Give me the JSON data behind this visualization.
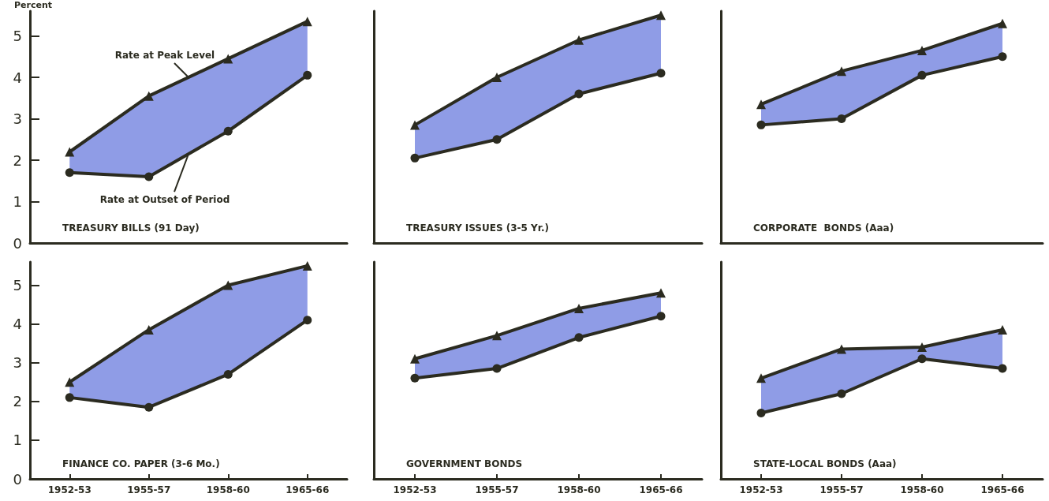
{
  "chart_data": [
    {
      "type": "line",
      "title": "TREASURY BILLS (91 Day)",
      "ylabel": "Percent",
      "categories": [
        "1952-53",
        "1955-57",
        "1958-60",
        "1965-66"
      ],
      "ylim": [
        0,
        5.6
      ],
      "yticks": [
        0,
        1,
        2,
        3,
        4,
        5
      ],
      "tick_labels": "y",
      "grid": false,
      "legend": false,
      "series": [
        {
          "name": "Rate at Peak Level",
          "color": "#2b2b20",
          "marker": "triangle",
          "values": [
            2.2,
            3.55,
            4.45,
            5.35
          ],
          "lower": [
            1.7,
            1.6,
            2.7,
            4.05
          ],
          "upper": [
            2.2,
            3.55,
            4.45,
            5.35
          ]
        },
        {
          "name": "Rate at Outset of Period",
          "color": "#2b2b20",
          "marker": "circle",
          "values": [
            1.7,
            1.6,
            2.7,
            4.05
          ]
        }
      ]
    },
    {
      "type": "line",
      "title": "TREASURY ISSUES (3-5 Yr.)",
      "categories": [
        "1952-53",
        "1955-57",
        "1958-60",
        "1965-66"
      ],
      "ylim": [
        0,
        5.6
      ],
      "yticks": [
        0,
        1,
        2,
        3,
        4,
        5
      ],
      "tick_labels": false,
      "grid": false,
      "legend": false,
      "series": [
        {
          "color": "#2b2b20",
          "marker": "triangle",
          "values": [
            2.85,
            4.0,
            4.9,
            5.5
          ],
          "lower": [
            2.05,
            2.5,
            3.6,
            4.1
          ],
          "upper": [
            2.85,
            4.0,
            4.9,
            5.5
          ]
        },
        {
          "color": "#2b2b20",
          "marker": "circle",
          "values": [
            2.05,
            2.5,
            3.6,
            4.1
          ]
        }
      ]
    },
    {
      "type": "line",
      "title": "CORPORATE  BONDS (Aaa)",
      "categories": [
        "1952-53",
        "1955-57",
        "1958-60",
        "1965-66"
      ],
      "ylim": [
        0,
        5.6
      ],
      "yticks": [
        0,
        1,
        2,
        3,
        4,
        5
      ],
      "tick_labels": false,
      "grid": false,
      "legend": false,
      "series": [
        {
          "color": "#2b2b20",
          "marker": "triangle",
          "values": [
            3.35,
            4.15,
            4.65,
            5.3
          ],
          "lower": [
            2.85,
            3.0,
            4.05,
            4.5
          ],
          "upper": [
            3.35,
            4.15,
            4.65,
            5.3
          ]
        },
        {
          "color": "#2b2b20",
          "marker": "circle",
          "values": [
            2.85,
            3.0,
            4.05,
            4.5
          ]
        }
      ]
    },
    {
      "type": "line",
      "title": "FINANCE CO. PAPER (3-6 Mo.)",
      "categories": [
        "1952-53",
        "1955-57",
        "1958-60",
        "1965-66"
      ],
      "ylim": [
        0,
        5.6
      ],
      "yticks": [
        0,
        1,
        2,
        3,
        4,
        5
      ],
      "grid": false,
      "legend": false,
      "series": [
        {
          "color": "#2b2b20",
          "marker": "triangle",
          "values": [
            2.5,
            3.85,
            5.0,
            5.5
          ],
          "lower": [
            2.1,
            1.85,
            2.7,
            4.1
          ],
          "upper": [
            2.5,
            3.85,
            5.0,
            5.5
          ]
        },
        {
          "color": "#2b2b20",
          "marker": "circle",
          "values": [
            2.1,
            1.85,
            2.7,
            4.1
          ]
        }
      ]
    },
    {
      "type": "line",
      "title": "GOVERNMENT BONDS",
      "categories": [
        "1952-53",
        "1955-57",
        "1958-60",
        "1965-66"
      ],
      "ylim": [
        0,
        5.6
      ],
      "yticks": [
        0,
        1,
        2,
        3,
        4,
        5
      ],
      "tick_labels": "x",
      "grid": false,
      "legend": false,
      "series": [
        {
          "color": "#2b2b20",
          "marker": "triangle",
          "values": [
            3.1,
            3.7,
            4.4,
            4.8
          ],
          "lower": [
            2.6,
            2.85,
            3.65,
            4.2
          ],
          "upper": [
            3.1,
            3.7,
            4.4,
            4.8
          ]
        },
        {
          "color": "#2b2b20",
          "marker": "circle",
          "values": [
            2.6,
            2.85,
            3.65,
            4.2
          ]
        }
      ]
    },
    {
      "type": "line",
      "title": "STATE-LOCAL BONDS (Aaa)",
      "categories": [
        "1952-53",
        "1955-57",
        "1958-60",
        "1965-66"
      ],
      "ylim": [
        0,
        5.6
      ],
      "yticks": [
        0,
        1,
        2,
        3,
        4,
        5
      ],
      "tick_labels": "x",
      "grid": false,
      "legend": false,
      "series": [
        {
          "color": "#2b2b20",
          "marker": "triangle",
          "values": [
            2.6,
            3.35,
            3.4,
            3.85
          ],
          "lower": [
            1.7,
            2.2,
            3.1,
            2.85
          ],
          "upper": [
            2.6,
            3.35,
            3.4,
            3.85
          ]
        },
        {
          "color": "#2b2b20",
          "marker": "circle",
          "values": [
            1.7,
            2.2,
            3.1,
            2.85
          ]
        }
      ]
    }
  ]
}
